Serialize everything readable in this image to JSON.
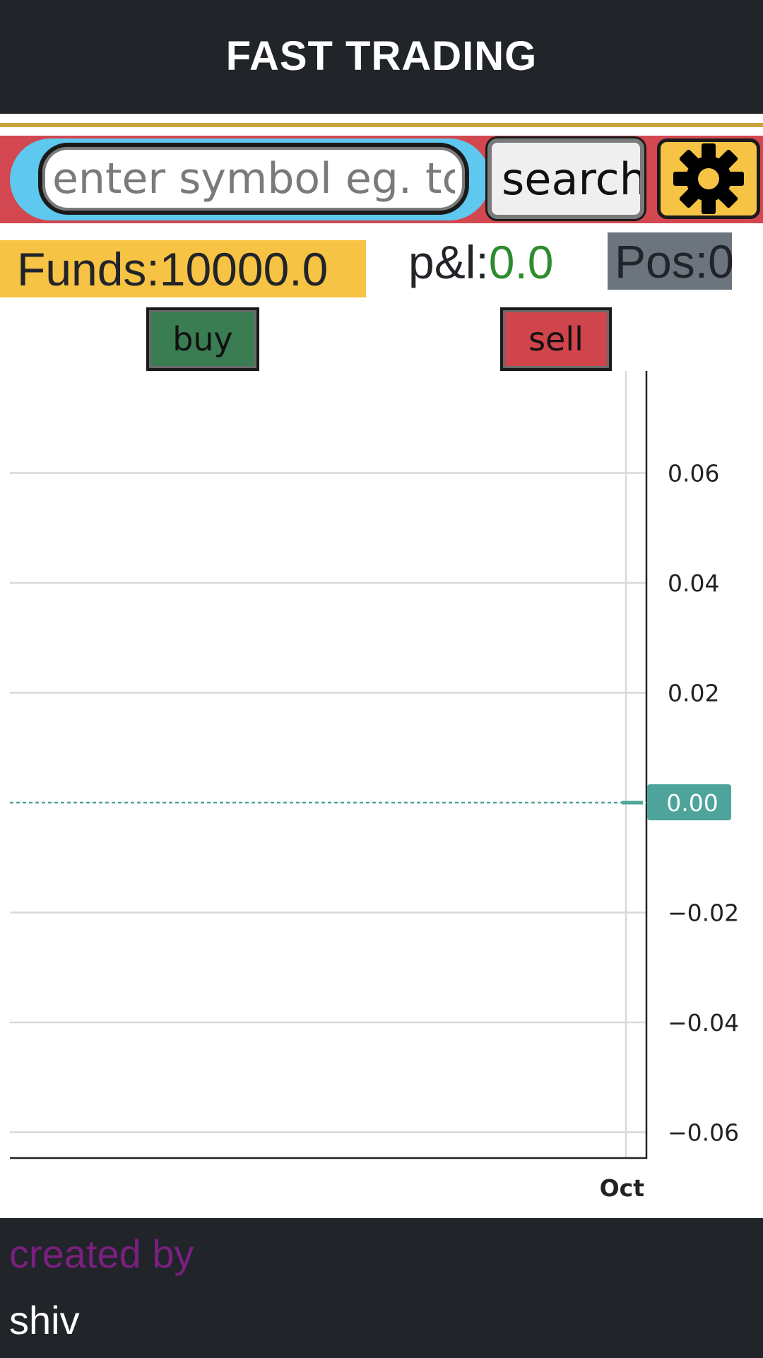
{
  "header": {
    "title": "FAST TRADING"
  },
  "search": {
    "placeholder": "enter symbol eg. tcs",
    "value": "",
    "button_label": "search",
    "settings_icon": "gear-icon"
  },
  "stats": {
    "funds_label": "Funds:10000.0",
    "pnl_label": "p&l:",
    "pnl_value": "0.0",
    "pos_label": "Pos:0"
  },
  "actions": {
    "buy_label": "buy",
    "sell_label": "sell"
  },
  "chart_data": {
    "type": "line",
    "title": "",
    "xlabel": "",
    "ylabel": "",
    "x_ticks": [
      "Oct"
    ],
    "y_ticks": [
      0.06,
      0.04,
      0.02,
      -0.02,
      -0.04,
      -0.06
    ],
    "ylim": [
      -0.07,
      0.07
    ],
    "current_price": 0.0,
    "current_price_label": "0.00",
    "grid": true,
    "y_axis_position": "right",
    "series": [
      {
        "values": [
          0.0
        ]
      }
    ]
  },
  "footer": {
    "created_by": "created by",
    "author": "shiv"
  },
  "colors": {
    "header_bg": "#212429",
    "accent_gold": "#c9a23a",
    "search_bar_bg": "#d24750",
    "search_pill": "#5ec8ee",
    "funds_bg": "#f7c344",
    "pos_bg": "#6c757d",
    "buy": "#3a7d52",
    "sell": "#d0444c",
    "pnl_positive": "#2e8b2e",
    "price_line": "#4ea49a",
    "created_by": "#7b1f80"
  }
}
